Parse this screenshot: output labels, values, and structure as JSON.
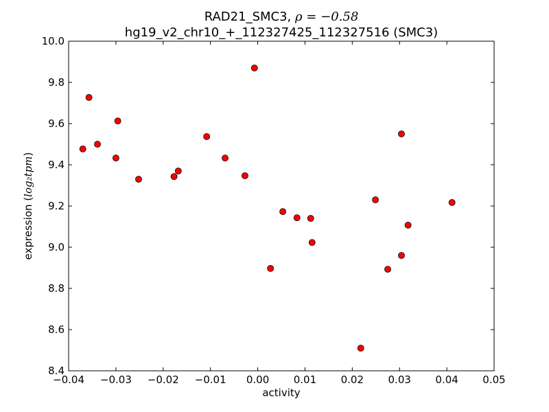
{
  "chart_data": {
    "type": "scatter",
    "title_line1": "RAD21_SMC3, ",
    "title_rho": "ρ = −0.58",
    "title_line2": "hg19_v2_chr10_+_112327425_112327516 (SMC3)",
    "xlabel": "activity",
    "ylabel_prefix": "expression (",
    "ylabel_math": "log₂tpm",
    "ylabel_suffix": ")",
    "xlim": [
      -0.04,
      0.05
    ],
    "ylim": [
      8.4,
      10.0
    ],
    "xticks": [
      "−0.04",
      "−0.03",
      "−0.02",
      "−0.01",
      "0.00",
      "0.01",
      "0.02",
      "0.03",
      "0.04",
      "0.05"
    ],
    "xtick_values": [
      -0.04,
      -0.03,
      -0.02,
      -0.01,
      0,
      0.01,
      0.02,
      0.03,
      0.04,
      0.05
    ],
    "yticks": [
      "8.4",
      "8.6",
      "8.8",
      "9.0",
      "9.2",
      "9.4",
      "9.6",
      "9.8",
      "10.0"
    ],
    "ytick_values": [
      8.4,
      8.6,
      8.8,
      9.0,
      9.2,
      9.4,
      9.6,
      9.8,
      10.0
    ],
    "marker_color": "#ff0000",
    "points": [
      [
        -0.037,
        9.477
      ],
      [
        -0.0357,
        9.727
      ],
      [
        -0.0339,
        9.5
      ],
      [
        -0.0296,
        9.613
      ],
      [
        -0.03,
        9.433
      ],
      [
        -0.0252,
        9.33
      ],
      [
        -0.0177,
        9.343
      ],
      [
        -0.0168,
        9.37
      ],
      [
        -0.0108,
        9.537
      ],
      [
        -0.0069,
        9.433
      ],
      [
        -0.0027,
        9.347
      ],
      [
        -0.0007,
        9.87
      ],
      [
        0.0027,
        8.897
      ],
      [
        0.0053,
        9.173
      ],
      [
        0.0083,
        9.143
      ],
      [
        0.0112,
        9.14
      ],
      [
        0.0115,
        9.023
      ],
      [
        0.0218,
        8.51
      ],
      [
        0.0249,
        9.23
      ],
      [
        0.0275,
        8.893
      ],
      [
        0.0304,
        9.55
      ],
      [
        0.0304,
        8.96
      ],
      [
        0.0318,
        9.107
      ],
      [
        0.0411,
        9.217
      ]
    ]
  }
}
